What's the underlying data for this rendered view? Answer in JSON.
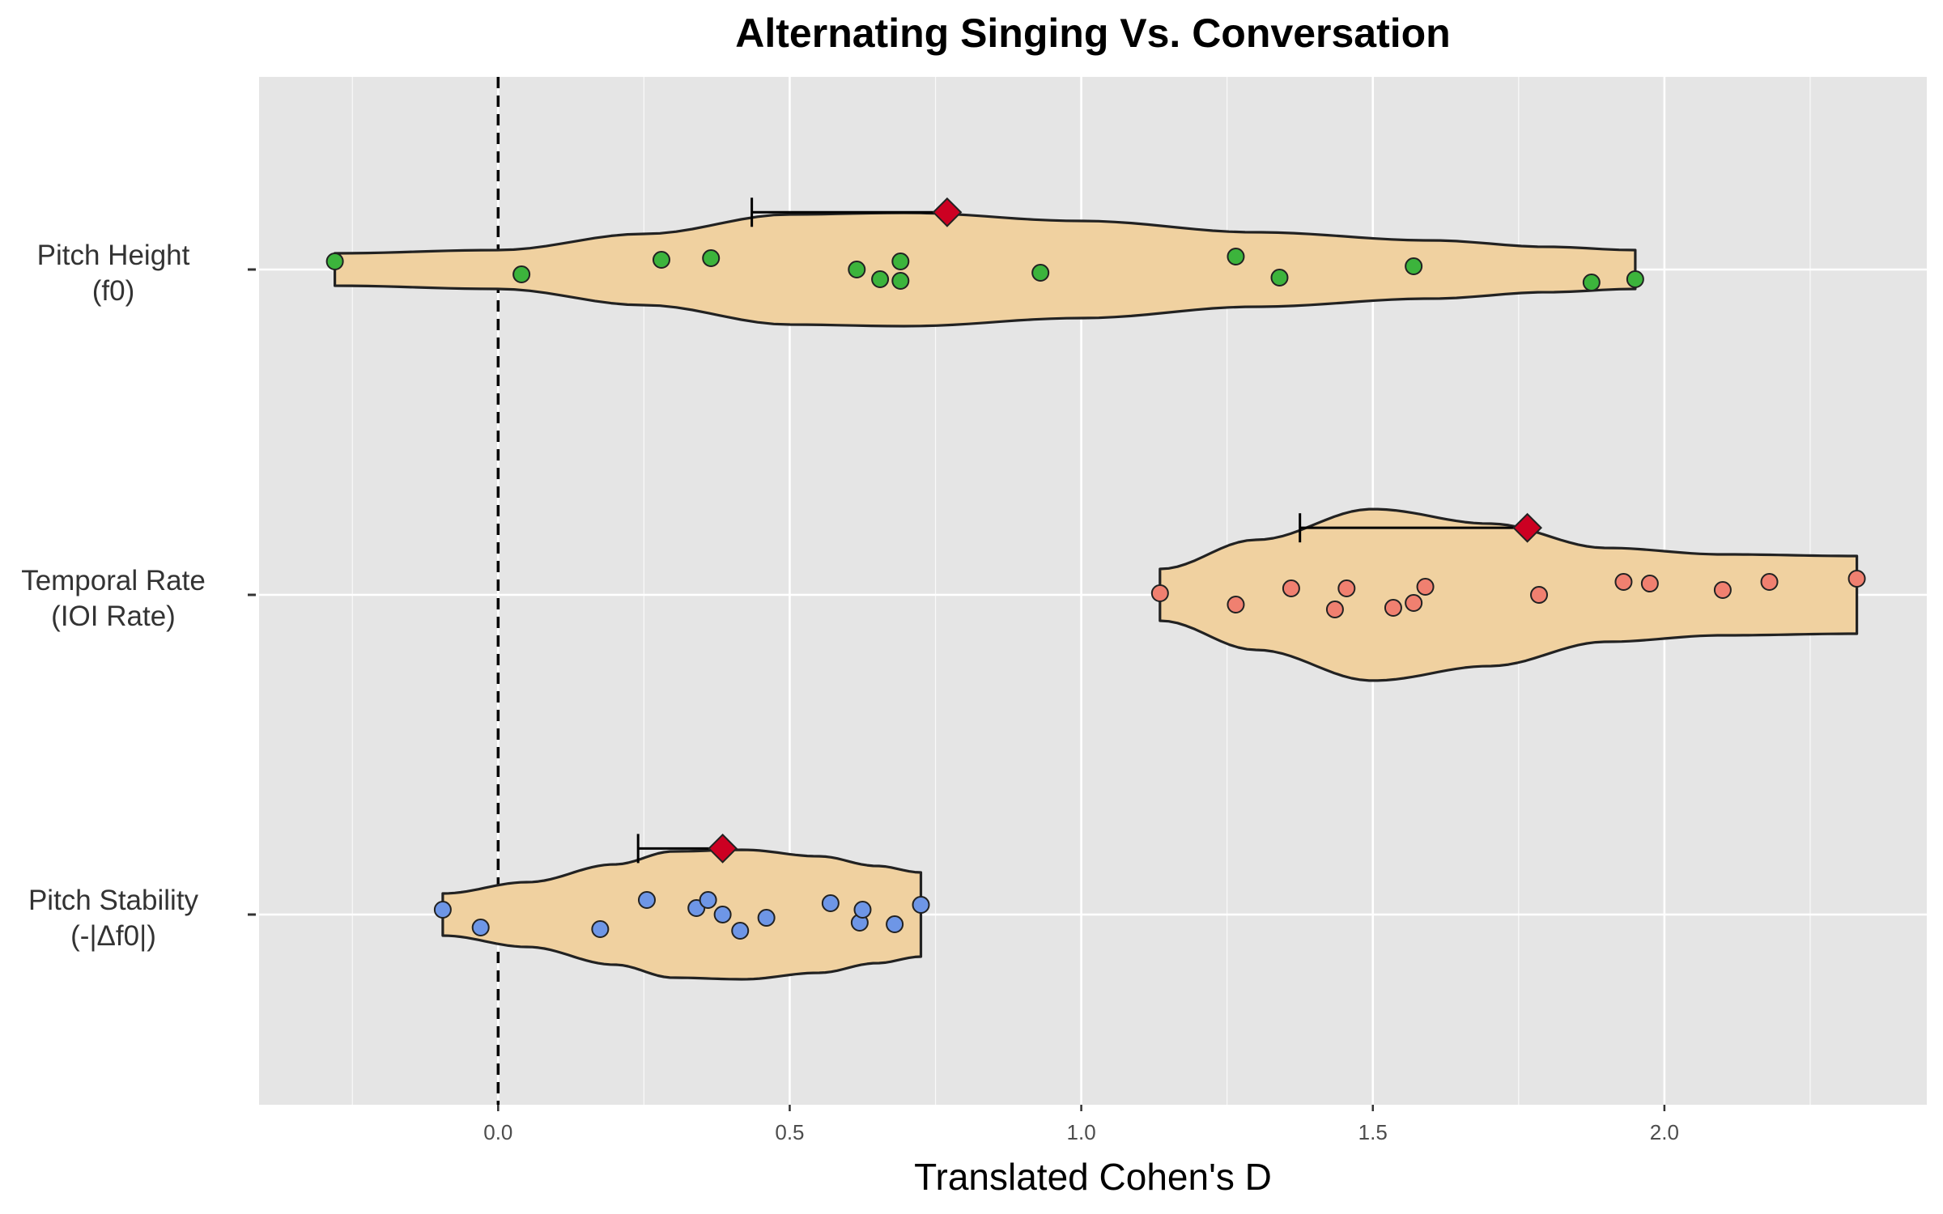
{
  "chart_data": {
    "type": "violin",
    "title": "Alternating Singing Vs. Conversation",
    "xlabel": "Translated Cohen's D",
    "ylabel": "",
    "xlim": [
      -0.41,
      2.45
    ],
    "xticks": [
      0.0,
      0.5,
      1.0,
      1.5,
      2.0
    ],
    "xtick_labels": [
      "0.0",
      "0.5",
      "1.0",
      "1.5",
      "2.0"
    ],
    "minor_grid": [
      -0.25,
      0.25,
      0.75,
      1.25,
      1.75,
      2.25
    ],
    "reference_line": 0.0,
    "grid": true,
    "colors": {
      "panel_background": "#e5e5e5",
      "grid": "#ffffff",
      "violin_fill": "#f0d1a0",
      "violin_stroke": "#222222",
      "mean_marker": "#cc0022"
    },
    "categories": [
      {
        "label_line1": "Pitch Height",
        "label_line2": "(f0)",
        "point_color": "#3cb43c",
        "mean": 0.77,
        "ci_lower": 0.435,
        "range": [
          -0.28,
          1.95
        ],
        "values": [
          -0.28,
          0.04,
          0.28,
          0.365,
          0.615,
          0.655,
          0.69,
          0.69,
          0.93,
          1.265,
          1.34,
          1.57,
          1.875,
          1.95
        ],
        "jitter": [
          0.05,
          -0.03,
          0.06,
          0.07,
          0.0,
          -0.06,
          0.05,
          -0.07,
          -0.02,
          0.08,
          -0.05,
          0.02,
          -0.08,
          -0.06
        ],
        "density": [
          [
            -0.28,
            0.1
          ],
          [
            0.0,
            0.12
          ],
          [
            0.25,
            0.22
          ],
          [
            0.5,
            0.34
          ],
          [
            0.7,
            0.35
          ],
          [
            1.0,
            0.3
          ],
          [
            1.3,
            0.23
          ],
          [
            1.6,
            0.18
          ],
          [
            1.8,
            0.14
          ],
          [
            1.95,
            0.12
          ]
        ]
      },
      {
        "label_line1": "Temporal Rate",
        "label_line2": "(IOI Rate)",
        "point_color": "#f08070",
        "mean": 1.765,
        "ci_lower": 1.375,
        "range": [
          1.135,
          2.33
        ],
        "values": [
          1.135,
          1.265,
          1.36,
          1.435,
          1.455,
          1.535,
          1.57,
          1.59,
          1.785,
          1.93,
          1.975,
          2.1,
          2.18,
          2.33
        ],
        "jitter": [
          0.01,
          -0.06,
          0.04,
          -0.09,
          0.04,
          -0.08,
          -0.05,
          0.05,
          0.0,
          0.08,
          0.07,
          0.03,
          0.08,
          0.1
        ],
        "density": [
          [
            1.135,
            0.16
          ],
          [
            1.3,
            0.34
          ],
          [
            1.5,
            0.53
          ],
          [
            1.7,
            0.44
          ],
          [
            1.9,
            0.29
          ],
          [
            2.1,
            0.25
          ],
          [
            2.33,
            0.24
          ]
        ]
      },
      {
        "label_line1": "Pitch Stability",
        "label_line2": "(-|Δf0|)",
        "point_color": "#6e96e6",
        "mean": 0.385,
        "ci_lower": 0.24,
        "range": [
          -0.095,
          0.725
        ],
        "values": [
          -0.095,
          -0.03,
          0.175,
          0.255,
          0.34,
          0.36,
          0.385,
          0.415,
          0.46,
          0.57,
          0.62,
          0.625,
          0.68,
          0.725
        ],
        "jitter": [
          0.03,
          -0.08,
          -0.09,
          0.09,
          0.04,
          0.09,
          0.0,
          -0.1,
          -0.02,
          0.07,
          -0.05,
          0.03,
          -0.06,
          0.06
        ],
        "density": [
          [
            -0.095,
            0.13
          ],
          [
            0.05,
            0.2
          ],
          [
            0.2,
            0.31
          ],
          [
            0.3,
            0.39
          ],
          [
            0.42,
            0.4
          ],
          [
            0.55,
            0.36
          ],
          [
            0.65,
            0.3
          ],
          [
            0.725,
            0.26
          ]
        ]
      }
    ]
  }
}
